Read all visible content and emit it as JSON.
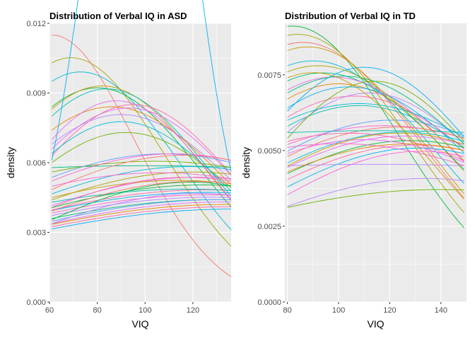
{
  "palette": [
    "#F8766D",
    "#E58700",
    "#C99800",
    "#A3A500",
    "#6BB100",
    "#00BA38",
    "#00BF7D",
    "#00C0AF",
    "#00BCD8",
    "#00B0F6",
    "#619CFF",
    "#B983FF",
    "#E76BF3",
    "#FD61D1",
    "#FF67A4"
  ],
  "chart_data": [
    {
      "type": "line",
      "title": "Distribution of Verbal IQ in ASD",
      "xlabel": "VIQ",
      "ylabel": "density",
      "xlim": [
        60,
        136
      ],
      "ylim": [
        0,
        0.012
      ],
      "xticks": [
        60,
        80,
        100,
        120
      ],
      "yticks": [
        0.0,
        0.003,
        0.006,
        0.009,
        0.012
      ],
      "ytick_labels": [
        "0.000",
        "0.003",
        "0.006",
        "0.009",
        "0.012"
      ],
      "grid": true,
      "legend": "none",
      "series_note_count": 60,
      "series": [
        {
          "x": [
            61,
            136
          ],
          "y": [
            0.0115,
            0.0011
          ],
          "peak": 61,
          "color_index": 0
        },
        {
          "x": [
            61,
            136
          ],
          "y": [
            0.0103,
            0.0022
          ],
          "peak": 69,
          "color_index": 3
        },
        {
          "x": [
            61,
            136
          ],
          "y": [
            0.0095,
            0.0029
          ],
          "peak": 73,
          "color_index": 8
        },
        {
          "x": [
            61,
            136
          ],
          "y": [
            0.0084,
            0.004
          ],
          "peak": 80,
          "color_index": 5
        },
        {
          "x": [
            61,
            136
          ],
          "y": [
            0.0083,
            0.0043
          ],
          "peak": 82,
          "color_index": 2
        },
        {
          "x": [
            61,
            136
          ],
          "y": [
            0.008,
            0.0046
          ],
          "peak": 84,
          "color_index": 7
        },
        {
          "x": [
            61,
            136
          ],
          "y": [
            0.0074,
            0.005
          ],
          "peak": 86,
          "color_index": 1
        },
        {
          "x": [
            61,
            136
          ],
          "y": [
            0.0068,
            0.0052
          ],
          "peak": 90,
          "color_index": 11
        },
        {
          "x": [
            61,
            136
          ],
          "y": [
            0.0066,
            0.0054
          ],
          "peak": 93,
          "color_index": 12
        },
        {
          "x": [
            61,
            136
          ],
          "y": [
            0.0063,
            0.0055
          ],
          "peak": 95,
          "color_index": 14
        },
        {
          "x": [
            61,
            136
          ],
          "y": [
            0.0061,
            0.0056
          ],
          "peak": 98,
          "color_index": 9
        },
        {
          "x": [
            61,
            136
          ],
          "y": [
            0.0058,
            0.0058
          ],
          "peak": 100,
          "color_index": 6
        },
        {
          "x": [
            61,
            136
          ],
          "y": [
            0.0056,
            0.0058
          ],
          "peak": 104,
          "color_index": 4
        },
        {
          "x": [
            61,
            136
          ],
          "y": [
            0.0054,
            0.006
          ],
          "peak": 108,
          "color_index": 10
        },
        {
          "x": [
            61,
            136
          ],
          "y": [
            0.0052,
            0.0061
          ],
          "peak": 112,
          "color_index": 13
        },
        {
          "x": [
            61,
            136
          ],
          "y": [
            0.0049,
            0.0061
          ],
          "peak": 116,
          "color_index": 0
        },
        {
          "x": [
            61,
            136
          ],
          "y": [
            0.0047,
            0.0057
          ],
          "peak": 118,
          "color_index": 8
        },
        {
          "x": [
            61,
            136
          ],
          "y": [
            0.0044,
            0.0055
          ],
          "peak": 120,
          "color_index": 3
        },
        {
          "x": [
            61,
            136
          ],
          "y": [
            0.0042,
            0.0053
          ],
          "peak": 122,
          "color_index": 12
        },
        {
          "x": [
            61,
            136
          ],
          "y": [
            0.0041,
            0.005
          ],
          "peak": 124,
          "color_index": 5
        },
        {
          "x": [
            61,
            136
          ],
          "y": [
            0.004,
            0.0048
          ],
          "peak": 125,
          "color_index": 14
        },
        {
          "x": [
            61,
            136
          ],
          "y": [
            0.0039,
            0.0047
          ],
          "peak": 126,
          "color_index": 9
        },
        {
          "x": [
            61,
            136
          ],
          "y": [
            0.0038,
            0.0046
          ],
          "peak": 127,
          "color_index": 13
        },
        {
          "x": [
            61,
            136
          ],
          "y": [
            0.0037,
            0.0045
          ],
          "peak": 128,
          "color_index": 11
        },
        {
          "x": [
            61,
            136
          ],
          "y": [
            0.0036,
            0.0044
          ],
          "peak": 130,
          "color_index": 6
        },
        {
          "x": [
            61,
            136
          ],
          "y": [
            0.0035,
            0.0044
          ],
          "peak": 131,
          "color_index": 10
        },
        {
          "x": [
            61,
            136
          ],
          "y": [
            0.0034,
            0.0043
          ],
          "peak": 132,
          "color_index": 12
        },
        {
          "x": [
            61,
            136
          ],
          "y": [
            0.0033,
            0.0042
          ],
          "peak": 134,
          "color_index": 1
        },
        {
          "x": [
            61,
            136
          ],
          "y": [
            0.0032,
            0.0041
          ],
          "peak": 135,
          "color_index": 14
        },
        {
          "x": [
            61,
            136
          ],
          "y": [
            0.0031,
            0.004
          ],
          "peak": 136,
          "color_index": 9
        },
        {
          "x": [
            61,
            136
          ],
          "y": [
            0.0043,
            0.0048
          ],
          "peak": 118,
          "color_index": 7
        },
        {
          "x": [
            61,
            136
          ],
          "y": [
            0.0045,
            0.0051
          ],
          "peak": 114,
          "color_index": 2
        },
        {
          "x": [
            61,
            136
          ],
          "y": [
            0.005,
            0.0053
          ],
          "peak": 106,
          "color_index": 13
        },
        {
          "x": [
            61,
            136
          ],
          "y": [
            0.006,
            0.0049
          ],
          "peak": 92,
          "color_index": 4
        },
        {
          "x": [
            61,
            136
          ],
          "y": [
            0.0064,
            0.0047
          ],
          "peak": 90,
          "color_index": 8
        },
        {
          "x": [
            61,
            136
          ],
          "y": [
            0.007,
            0.0045
          ],
          "peak": 88,
          "color_index": 12
        },
        {
          "x": [
            61,
            136
          ],
          "y": [
            0.0036,
            0.005
          ],
          "peak": 119,
          "color_index": 5
        },
        {
          "x": [
            61,
            136
          ],
          "y": [
            0.0034,
            0.0046
          ],
          "peak": 122,
          "color_index": 11
        },
        {
          "x": [
            61,
            136
          ],
          "y": [
            0.0039,
            0.0051
          ],
          "peak": 121,
          "color_index": 0
        },
        {
          "x": [
            61,
            136
          ],
          "y": [
            0.0041,
            0.0052
          ],
          "peak": 117,
          "color_index": 14
        }
      ]
    },
    {
      "type": "line",
      "title": "Distribution of Verbal IQ in TD",
      "xlabel": "VIQ",
      "ylabel": "density",
      "xlim": [
        79,
        150
      ],
      "ylim": [
        0,
        0.0092
      ],
      "xticks": [
        80,
        100,
        120,
        140
      ],
      "yticks": [
        0.0,
        0.0025,
        0.005,
        0.0075
      ],
      "ytick_labels": [
        "0.0000",
        "0.0025",
        "0.0050",
        "0.0075"
      ],
      "grid": true,
      "legend": "none",
      "series": [
        {
          "x": [
            80,
            149
          ],
          "y": [
            0.0091,
            0.0026
          ],
          "peak": 82,
          "color_index": 5
        },
        {
          "x": [
            80,
            149
          ],
          "y": [
            0.0088,
            0.003
          ],
          "peak": 84,
          "color_index": 3
        },
        {
          "x": [
            80,
            149
          ],
          "y": [
            0.0085,
            0.0034
          ],
          "peak": 86,
          "color_index": 0
        },
        {
          "x": [
            80,
            149
          ],
          "y": [
            0.0083,
            0.0037
          ],
          "peak": 88,
          "color_index": 2
        },
        {
          "x": [
            80,
            149
          ],
          "y": [
            0.0078,
            0.004
          ],
          "peak": 90,
          "color_index": 8
        },
        {
          "x": [
            80,
            149
          ],
          "y": [
            0.0073,
            0.0044
          ],
          "peak": 94,
          "color_index": 6
        },
        {
          "x": [
            80,
            149
          ],
          "y": [
            0.007,
            0.0046
          ],
          "peak": 98,
          "color_index": 12
        },
        {
          "x": [
            80,
            149
          ],
          "y": [
            0.0067,
            0.0047
          ],
          "peak": 100,
          "color_index": 1
        },
        {
          "x": [
            80,
            149
          ],
          "y": [
            0.0064,
            0.0049
          ],
          "peak": 104,
          "color_index": 9
        },
        {
          "x": [
            80,
            149
          ],
          "y": [
            0.0061,
            0.005
          ],
          "peak": 106,
          "color_index": 14
        },
        {
          "x": [
            80,
            149
          ],
          "y": [
            0.0058,
            0.0051
          ],
          "peak": 108,
          "color_index": 7
        },
        {
          "x": [
            80,
            149
          ],
          "y": [
            0.0056,
            0.0052
          ],
          "peak": 112,
          "color_index": 11
        },
        {
          "x": [
            80,
            149
          ],
          "y": [
            0.0054,
            0.0053
          ],
          "peak": 114,
          "color_index": 4
        },
        {
          "x": [
            80,
            149
          ],
          "y": [
            0.0052,
            0.0054
          ],
          "peak": 118,
          "color_index": 13
        },
        {
          "x": [
            80,
            149
          ],
          "y": [
            0.005,
            0.0055
          ],
          "peak": 121,
          "color_index": 10
        },
        {
          "x": [
            80,
            149
          ],
          "y": [
            0.0048,
            0.0054
          ],
          "peak": 123,
          "color_index": 0
        },
        {
          "x": [
            80,
            149
          ],
          "y": [
            0.0046,
            0.0053
          ],
          "peak": 125,
          "color_index": 8
        },
        {
          "x": [
            80,
            149
          ],
          "y": [
            0.0044,
            0.0052
          ],
          "peak": 126,
          "color_index": 12
        },
        {
          "x": [
            80,
            149
          ],
          "y": [
            0.0042,
            0.0051
          ],
          "peak": 128,
          "color_index": 5
        },
        {
          "x": [
            80,
            149
          ],
          "y": [
            0.004,
            0.005
          ],
          "peak": 130,
          "color_index": 14
        },
        {
          "x": [
            80,
            149
          ],
          "y": [
            0.0038,
            0.0049
          ],
          "peak": 131,
          "color_index": 9
        },
        {
          "x": [
            80,
            149
          ],
          "y": [
            0.0036,
            0.0048
          ],
          "peak": 132,
          "color_index": 13
        },
        {
          "x": [
            80,
            149
          ],
          "y": [
            0.0032,
            0.004
          ],
          "peak": 134,
          "color_index": 11
        },
        {
          "x": [
            80,
            149
          ],
          "y": [
            0.0031,
            0.0037
          ],
          "peak": 140,
          "color_index": 4
        },
        {
          "x": [
            80,
            149
          ],
          "y": [
            0.006,
            0.0054
          ],
          "peak": 108,
          "color_index": 8
        },
        {
          "x": [
            80,
            149
          ],
          "y": [
            0.0063,
            0.0055
          ],
          "peak": 110,
          "color_index": 9
        },
        {
          "x": [
            80,
            149
          ],
          "y": [
            0.0057,
            0.0056
          ],
          "peak": 116,
          "color_index": 7
        },
        {
          "x": [
            80,
            149
          ],
          "y": [
            0.0069,
            0.0052
          ],
          "peak": 102,
          "color_index": 6
        },
        {
          "x": [
            80,
            149
          ],
          "y": [
            0.0053,
            0.0047
          ],
          "peak": 104,
          "color_index": 14
        },
        {
          "x": [
            80,
            149
          ],
          "y": [
            0.0051,
            0.0045
          ],
          "peak": 100,
          "color_index": 13
        },
        {
          "x": [
            80,
            149
          ],
          "y": [
            0.0049,
            0.0046
          ],
          "peak": 110,
          "color_index": 12
        },
        {
          "x": [
            80,
            149
          ],
          "y": [
            0.0047,
            0.0045
          ],
          "peak": 115,
          "color_index": 11
        },
        {
          "x": [
            80,
            149
          ],
          "y": [
            0.0045,
            0.0052
          ],
          "peak": 124,
          "color_index": 2
        },
        {
          "x": [
            80,
            149
          ],
          "y": [
            0.0043,
            0.005
          ],
          "peak": 127,
          "color_index": 1
        },
        {
          "x": [
            80,
            149
          ],
          "y": [
            0.0076,
            0.0042
          ],
          "peak": 92,
          "color_index": 3
        },
        {
          "x": [
            80,
            149
          ],
          "y": [
            0.0074,
            0.0033
          ],
          "peak": 90,
          "color_index": 2
        }
      ]
    }
  ]
}
